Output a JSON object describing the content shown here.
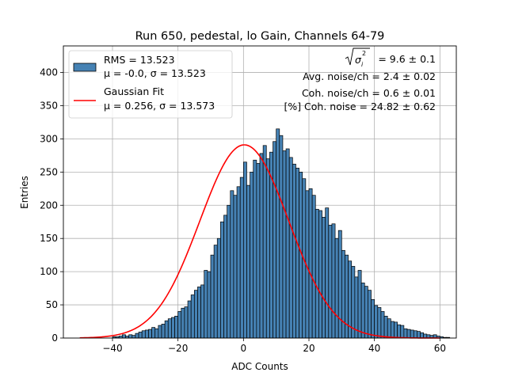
{
  "chart_data": {
    "type": "bar",
    "title": "Run 650, pedestal, lo Gain, Channels 64-79",
    "xlabel": "ADC Counts",
    "ylabel": "Entries",
    "xlim": [
      -55,
      65
    ],
    "ylim": [
      0,
      440
    ],
    "xticks": [
      "−40",
      "−20",
      "0",
      "20",
      "40",
      "60"
    ],
    "yticks": [
      "0",
      "50",
      "100",
      "150",
      "200",
      "250",
      "300",
      "350",
      "400"
    ],
    "grid": true,
    "legend_position": "top-left",
    "histogram": {
      "name": "RMS = 13.523",
      "label2": "μ = -0.0, σ = 13.523",
      "color": "#4682b4",
      "edge_color": "#000000",
      "bin_start": -40,
      "bin_width": 1,
      "values": [
        2,
        2,
        3,
        5,
        3,
        5,
        4,
        7,
        9,
        11,
        12,
        13,
        16,
        14,
        19,
        21,
        26,
        29,
        31,
        33,
        40,
        45,
        47,
        56,
        65,
        72,
        77,
        80,
        102,
        100,
        125,
        140,
        150,
        175,
        185,
        200,
        222,
        215,
        228,
        242,
        265,
        230,
        250,
        268,
        263,
        278,
        290,
        270,
        280,
        296,
        315,
        305,
        282,
        285,
        272,
        262,
        256,
        250,
        240,
        222,
        225,
        215,
        194,
        192,
        182,
        196,
        170,
        172,
        150,
        162,
        132,
        125,
        116,
        108,
        92,
        102,
        83,
        78,
        72,
        58,
        49,
        46,
        40,
        33,
        29,
        25,
        24,
        20,
        19,
        14,
        13,
        12,
        11,
        10,
        8,
        6,
        5,
        4,
        5,
        3,
        2,
        1,
        1
      ]
    },
    "fit": {
      "name": "Gaussian Fit",
      "label2": "μ = 0.256, σ = 13.573",
      "color": "#ff0000",
      "mu": 0.256,
      "sigma": 13.573,
      "peak": 291,
      "x_range": [
        -50,
        60
      ]
    },
    "annotations": {
      "line1": "= 9.6 ± 0.1",
      "line2": "Avg. noise/ch = 2.4 ± 0.02",
      "line3": "Coh. noise/ch = 0.6 ± 0.01",
      "line4": "[%] Coh. noise = 24.82 ± 0.62"
    }
  }
}
